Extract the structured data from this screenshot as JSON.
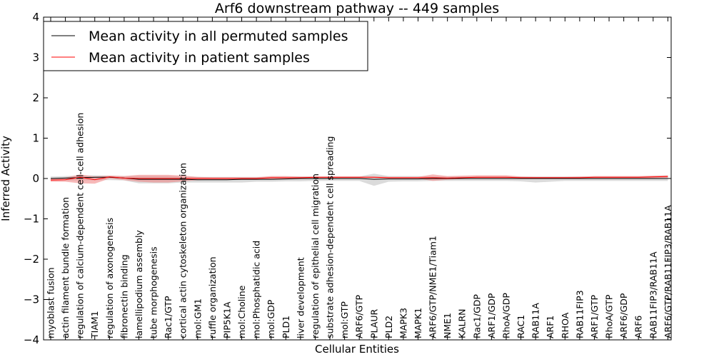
{
  "chart_data": {
    "type": "line",
    "title": "Arf6 downstream pathway -- 449 samples",
    "xlabel": "Cellular Entities",
    "ylabel": "Inferred Activity",
    "ylim": [
      -4,
      4
    ],
    "yticks": [
      -4,
      -3,
      -2,
      -1,
      0,
      1,
      2,
      3,
      4
    ],
    "grid": false,
    "legend_position": "top-left",
    "categories": [
      "myoblast fusion",
      "actin filament bundle formation",
      "regulation of calcium-dependent cell-cell adhesion",
      "TIAM1",
      "regulation of axonogenesis",
      "fibronectin binding",
      "lamellipodium assembly",
      "tube morphogenesis",
      "Rac1/GTP",
      "cortical actin cytoskeleton organization",
      "mol:GM1",
      "ruffle organization",
      "PIP5K1A",
      "mol:Choline",
      "mol:Phosphatidic acid",
      "mol:GDP",
      "PLD1",
      "liver development",
      "regulation of epithelial cell migration",
      "substrate adhesion-dependent cell spreading",
      "mol:GTP",
      "ARF6/GTP",
      "PLAUR",
      "PLD2",
      "MAPK3",
      "MAPK1",
      "ARF6/GTP/NME1/Tiam1",
      "NME1",
      "KALRN",
      "Rac1/GDP",
      "ARF1/GDP",
      "RhoA/GDP",
      "RAC1",
      "RAB11A",
      "ARF1",
      "RHOA",
      "RAB11FIP3",
      "ARF1/GTP",
      "RhoA/GTP",
      "ARF6/GDP",
      "ARF6",
      "RAB11FIP3/RAB11A",
      "ARF6/GTP/RAB11FIP3/RAB11A"
    ],
    "series": [
      {
        "name": "Mean activity in all permuted samples",
        "color": "#000000",
        "band_color": "#999999",
        "values": [
          0.0,
          0.01,
          0.02,
          0.03,
          0.03,
          0.01,
          -0.02,
          -0.02,
          -0.02,
          -0.02,
          -0.03,
          -0.03,
          -0.03,
          -0.02,
          -0.02,
          -0.02,
          -0.01,
          0.0,
          0.0,
          0.0,
          0.0,
          0.0,
          -0.02,
          -0.01,
          -0.01,
          -0.01,
          0.0,
          0.0,
          0.0,
          0.0,
          0.0,
          0.0,
          0.0,
          0.0,
          0.0,
          0.0,
          0.0,
          0.0,
          0.0,
          0.0,
          0.0,
          0.0,
          0.0
        ],
        "band_lower": [
          -0.05,
          -0.05,
          -0.05,
          -0.04,
          -0.04,
          -0.05,
          -0.12,
          -0.12,
          -0.12,
          -0.1,
          -0.1,
          -0.1,
          -0.1,
          -0.1,
          -0.08,
          -0.08,
          -0.07,
          -0.07,
          -0.06,
          -0.06,
          -0.06,
          -0.06,
          -0.18,
          -0.08,
          -0.07,
          -0.07,
          -0.06,
          -0.06,
          -0.06,
          -0.06,
          -0.06,
          -0.06,
          -0.07,
          -0.1,
          -0.08,
          -0.06,
          -0.06,
          -0.06,
          -0.06,
          -0.06,
          -0.06,
          -0.06,
          -0.06
        ],
        "band_upper": [
          0.05,
          0.06,
          0.07,
          0.08,
          0.07,
          0.06,
          0.06,
          0.06,
          0.06,
          0.05,
          0.04,
          0.04,
          0.04,
          0.04,
          0.04,
          0.04,
          0.05,
          0.05,
          0.05,
          0.05,
          0.05,
          0.05,
          0.12,
          0.06,
          0.06,
          0.06,
          0.05,
          0.05,
          0.05,
          0.05,
          0.05,
          0.05,
          0.05,
          0.05,
          0.05,
          0.05,
          0.05,
          0.05,
          0.05,
          0.05,
          0.05,
          0.06,
          0.07
        ]
      },
      {
        "name": "Mean activity in patient samples",
        "color": "#ff0000",
        "band_color": "#f08080",
        "values": [
          -0.04,
          -0.03,
          0.03,
          -0.03,
          0.04,
          0.01,
          0.0,
          0.0,
          0.0,
          0.0,
          0.0,
          0.0,
          0.0,
          0.0,
          0.0,
          0.02,
          0.02,
          0.02,
          0.03,
          0.03,
          0.03,
          0.03,
          0.03,
          0.02,
          0.02,
          0.02,
          0.02,
          0.01,
          0.02,
          0.03,
          0.03,
          0.03,
          0.02,
          0.02,
          0.02,
          0.02,
          0.02,
          0.03,
          0.03,
          0.03,
          0.03,
          0.04,
          0.05
        ],
        "band_lower": [
          -0.08,
          -0.08,
          -0.12,
          -0.13,
          0.0,
          -0.04,
          -0.08,
          -0.1,
          -0.1,
          -0.07,
          -0.04,
          -0.03,
          -0.03,
          -0.03,
          -0.03,
          -0.01,
          -0.01,
          0.0,
          0.01,
          0.01,
          0.01,
          0.01,
          0.01,
          0.0,
          0.0,
          0.0,
          -0.06,
          -0.03,
          -0.01,
          0.0,
          0.0,
          0.0,
          0.0,
          0.0,
          0.0,
          0.0,
          0.0,
          0.0,
          0.0,
          0.0,
          0.0,
          0.01,
          0.02
        ],
        "band_upper": [
          0.0,
          0.02,
          0.1,
          0.05,
          0.07,
          0.06,
          0.09,
          0.09,
          0.09,
          0.07,
          0.04,
          0.03,
          0.03,
          0.03,
          0.03,
          0.06,
          0.06,
          0.05,
          0.05,
          0.05,
          0.05,
          0.05,
          0.05,
          0.04,
          0.04,
          0.04,
          0.1,
          0.06,
          0.07,
          0.08,
          0.08,
          0.08,
          0.05,
          0.04,
          0.04,
          0.04,
          0.05,
          0.06,
          0.06,
          0.06,
          0.06,
          0.07,
          0.08
        ]
      }
    ]
  }
}
